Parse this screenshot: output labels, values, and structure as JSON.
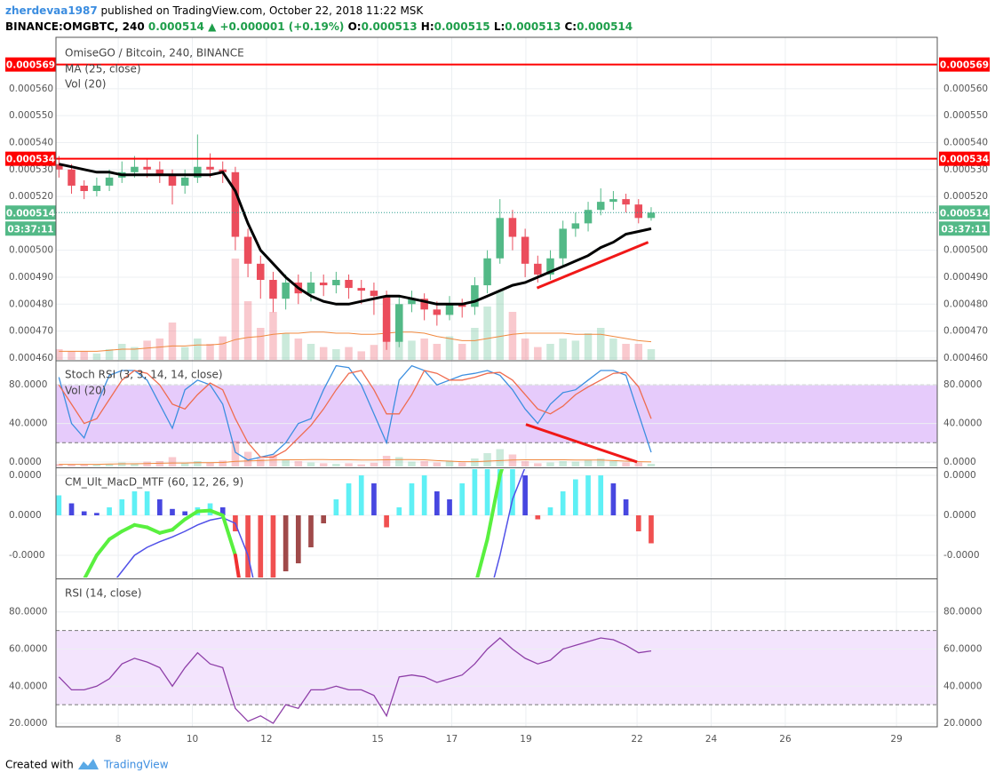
{
  "header": {
    "author": "zherdevaa1987",
    "published": " published on TradingView.com, October 22, 2018 11:22 MSK",
    "symbol": "BINANCE:OMGBTC, 240",
    "last": "0.000514",
    "change": "▲ +0.000001 (+0.19%)",
    "ohlc": [
      {
        "label": "O:",
        "value": "0.000513"
      },
      {
        "label": "H:",
        "value": "0.000515"
      },
      {
        "label": "L:",
        "value": "0.000513"
      },
      {
        "label": "C:",
        "value": "0.000514"
      }
    ]
  },
  "footer": {
    "created": "Created with",
    "brand": "TradingView"
  },
  "chart_data": [
    {
      "type": "candlestick",
      "title": "OmiseGO / Bitcoin, 240, BINANCE",
      "xlim": [
        6.32,
        30.1
      ],
      "xticks": [
        8,
        10,
        12,
        15,
        17,
        19,
        22,
        24,
        26,
        29
      ],
      "grid": true,
      "ylim": [
        0.0004593,
        0.0005791
      ],
      "yticks": [
        {
          "value": 0.00056,
          "label": "0.000560"
        },
        {
          "value": 0.00055,
          "label": "0.000550"
        },
        {
          "value": 0.00054,
          "label": "0.000540"
        },
        {
          "value": 0.00053,
          "label": "0.000530"
        },
        {
          "value": 0.00052,
          "label": "0.000520"
        },
        {
          "value": 0.0005,
          "label": "0.000500"
        },
        {
          "value": 0.00049,
          "label": "0.000490"
        },
        {
          "value": 0.00048,
          "label": "0.000480"
        },
        {
          "value": 0.00047,
          "label": "0.000470"
        },
        {
          "value": 0.00046,
          "label": "0.000460"
        }
      ],
      "up_color": "#53b987",
      "down_color": "#eb4d5c",
      "x": [
        6.4,
        6.74,
        7.08,
        7.42,
        7.76,
        8.1,
        8.44,
        8.78,
        9.12,
        9.46,
        9.8,
        10.14,
        10.48,
        10.82,
        11.16,
        11.5,
        11.84,
        12.18,
        12.52,
        12.86,
        13.2,
        13.54,
        13.88,
        14.22,
        14.56,
        14.9,
        15.24,
        15.58,
        15.92,
        16.26,
        16.6,
        16.94,
        17.28,
        17.62,
        17.96,
        18.3,
        18.64,
        18.98,
        19.32,
        19.66,
        20.0,
        20.34,
        20.68,
        21.02,
        21.36,
        21.7,
        22.04,
        22.38
      ],
      "open": [
        0.000532,
        0.00053,
        0.000524,
        0.000522,
        0.000524,
        0.000527,
        0.000529,
        0.000531,
        0.00053,
        0.000528,
        0.000524,
        0.000527,
        0.000531,
        0.00053,
        0.000529,
        0.000505,
        0.000495,
        0.000489,
        0.000482,
        0.000488,
        0.000484,
        0.000488,
        0.000487,
        0.000489,
        0.000486,
        0.000485,
        0.000483,
        0.000466,
        0.00048,
        0.000482,
        0.000478,
        0.000476,
        0.00048,
        0.000479,
        0.000487,
        0.000497,
        0.000512,
        0.000505,
        0.000495,
        0.000491,
        0.000497,
        0.000508,
        0.00051,
        0.000515,
        0.000518,
        0.000519,
        0.000517,
        0.000512
      ],
      "high": [
        0.000535,
        0.000532,
        0.000526,
        0.000527,
        0.00053,
        0.000533,
        0.000535,
        0.000534,
        0.000533,
        0.00053,
        0.00053,
        0.000543,
        0.000536,
        0.000533,
        0.000531,
        0.000508,
        0.000498,
        0.000492,
        0.000491,
        0.000491,
        0.000492,
        0.000491,
        0.000492,
        0.000491,
        0.000489,
        0.000488,
        0.000485,
        0.000483,
        0.000485,
        0.000484,
        0.000481,
        0.000483,
        0.000482,
        0.00049,
        0.0005,
        0.000519,
        0.000515,
        0.000508,
        0.000498,
        0.0005,
        0.000511,
        0.000514,
        0.000518,
        0.000523,
        0.000522,
        0.000521,
        0.000519,
        0.000516
      ],
      "low": [
        0.000527,
        0.000521,
        0.000519,
        0.00052,
        0.000522,
        0.000525,
        0.000527,
        0.000527,
        0.000525,
        0.000517,
        0.000521,
        0.000525,
        0.000527,
        0.000525,
        0.0005,
        0.00049,
        0.000482,
        0.000477,
        0.000478,
        0.00048,
        0.000481,
        0.000483,
        0.000484,
        0.000482,
        0.00048,
        0.000476,
        0.000463,
        0.000464,
        0.000477,
        0.000474,
        0.000472,
        0.000474,
        0.000475,
        0.000476,
        0.000484,
        0.000495,
        0.0005,
        0.00049,
        0.000488,
        0.000489,
        0.000494,
        0.000505,
        0.000507,
        0.000513,
        0.000515,
        0.000514,
        0.00051,
        0.000511
      ],
      "close": [
        0.00053,
        0.000524,
        0.000522,
        0.000524,
        0.000527,
        0.000529,
        0.000531,
        0.00053,
        0.000528,
        0.000524,
        0.000527,
        0.000531,
        0.00053,
        0.000529,
        0.000505,
        0.000495,
        0.000489,
        0.000482,
        0.000488,
        0.000484,
        0.000488,
        0.000487,
        0.000489,
        0.000486,
        0.000485,
        0.000483,
        0.000466,
        0.00048,
        0.000482,
        0.000478,
        0.000476,
        0.00048,
        0.000479,
        0.000487,
        0.000497,
        0.000512,
        0.000505,
        0.000495,
        0.000491,
        0.000497,
        0.000508,
        0.00051,
        0.000515,
        0.000518,
        0.000519,
        0.000517,
        0.000512,
        0.000514
      ],
      "series": [
        {
          "name": "MA (25, close)",
          "color": "#000000",
          "values": [
            0.000532,
            0.000531,
            0.00053,
            0.000529,
            0.000529,
            0.000528,
            0.000528,
            0.000528,
            0.000528,
            0.000528,
            0.000528,
            0.000528,
            0.000528,
            0.000529,
            0.000522,
            0.00051,
            0.0005,
            0.000495,
            0.00049,
            0.000486,
            0.000483,
            0.000481,
            0.00048,
            0.00048,
            0.000481,
            0.000482,
            0.000483,
            0.000483,
            0.000482,
            0.000481,
            0.00048,
            0.00048,
            0.00048,
            0.000481,
            0.000483,
            0.000485,
            0.000487,
            0.000488,
            0.00049,
            0.000492,
            0.000494,
            0.000496,
            0.000498,
            0.000501,
            0.000503,
            0.000506,
            0.000507,
            0.000508
          ]
        }
      ],
      "volume": {
        "name": "Vol (20)",
        "vlim": [
          0,
          100
        ],
        "ma_color": "#f0883e",
        "values": [
          10,
          8,
          8,
          6,
          10,
          15,
          12,
          18,
          20,
          35,
          12,
          20,
          15,
          22,
          95,
          55,
          30,
          45,
          25,
          20,
          15,
          12,
          10,
          12,
          8,
          14,
          40,
          35,
          18,
          20,
          15,
          22,
          15,
          30,
          50,
          65,
          45,
          20,
          12,
          15,
          20,
          18,
          25,
          30,
          20,
          15,
          15,
          10
        ],
        "ma": [
          8,
          8,
          8,
          8,
          9,
          10,
          10,
          11,
          12,
          13,
          13,
          14,
          14,
          15,
          19,
          21,
          22,
          24,
          25,
          25,
          26,
          26,
          25,
          25,
          24,
          24,
          25,
          26,
          26,
          25,
          22,
          20,
          18,
          18,
          20,
          22,
          24,
          25,
          25,
          25,
          25,
          24,
          24,
          24,
          22,
          20,
          18,
          17
        ]
      },
      "levels": [
        {
          "value": 0.000569,
          "color": "#ff0000"
        },
        {
          "value": 0.000534,
          "color": "#ff0000"
        }
      ],
      "last_price": {
        "value": 0.000514,
        "countdown": "03:37:11",
        "color": "#53b987"
      },
      "trendlines": [
        {
          "x": [
            19.3,
            22.3
          ],
          "y": [
            0.000486,
            0.000503
          ],
          "color": "#f01818"
        }
      ]
    },
    {
      "type": "line",
      "title": "Stoch RSI (3, 3, 14, 14, close)",
      "overlay_label": "Vol (20)",
      "xlim": [
        6.32,
        30.1
      ],
      "ylim": [
        -4.65,
        104.2
      ],
      "yticks": [
        {
          "value": 80,
          "label": "80.0000"
        },
        {
          "value": 40,
          "label": "40.0000"
        },
        {
          "value": 0,
          "label": "0.0000"
        }
      ],
      "band": [
        20,
        80
      ],
      "band_color": "#e6cbfb",
      "x": [
        6.4,
        6.74,
        7.08,
        7.42,
        7.76,
        8.1,
        8.44,
        8.78,
        9.12,
        9.46,
        9.8,
        10.14,
        10.48,
        10.82,
        11.16,
        11.5,
        11.84,
        12.18,
        12.52,
        12.86,
        13.2,
        13.54,
        13.88,
        14.22,
        14.56,
        14.9,
        15.24,
        15.58,
        15.92,
        16.26,
        16.6,
        16.94,
        17.28,
        17.62,
        17.96,
        18.3,
        18.64,
        18.98,
        19.32,
        19.66,
        20.0,
        20.34,
        20.68,
        21.02,
        21.36,
        21.7,
        22.04,
        22.38
      ],
      "series": [
        {
          "color": "#3d8fe0",
          "values": [
            88,
            40,
            25,
            60,
            90,
            95,
            95,
            85,
            60,
            35,
            75,
            85,
            80,
            60,
            10,
            2,
            5,
            8,
            20,
            40,
            45,
            75,
            100,
            98,
            80,
            50,
            20,
            85,
            100,
            95,
            80,
            85,
            90,
            92,
            95,
            90,
            75,
            55,
            40,
            60,
            72,
            75,
            85,
            95,
            95,
            90,
            50,
            10
          ]
        },
        {
          "color": "#ef6c4f",
          "values": [
            80,
            60,
            40,
            45,
            65,
            85,
            95,
            92,
            80,
            60,
            55,
            70,
            82,
            75,
            45,
            20,
            5,
            5,
            12,
            25,
            38,
            55,
            75,
            92,
            95,
            75,
            50,
            50,
            70,
            95,
            92,
            85,
            85,
            88,
            92,
            93,
            85,
            70,
            55,
            50,
            58,
            70,
            78,
            85,
            92,
            93,
            78,
            45
          ]
        }
      ],
      "trendlines": [
        {
          "x": [
            19.0,
            22.0
          ],
          "y": [
            39,
            0
          ],
          "color": "#f01818"
        }
      ]
    },
    {
      "type": "macd",
      "title": "CM_Ult_MacD_MTF (60, 12, 26, 9)",
      "xlim": [
        6.32,
        30.1
      ],
      "ylim": [
        -7.78e-06,
        5.78e-06
      ],
      "yticks": [
        {
          "value": 5e-06,
          "label": "0.0000"
        },
        {
          "value": 0,
          "label": "0.0000"
        },
        {
          "value": -5e-06,
          "label": "-0.0000"
        }
      ],
      "histogram_colors": [
        "#5ff0f5",
        "#4747e0",
        "#f05050",
        "#a04a4a"
      ],
      "macd_colors": [
        "#59f03f",
        "#f03030"
      ],
      "signal_color": "#5050e8",
      "x": [
        6.4,
        6.74,
        7.08,
        7.42,
        7.76,
        8.1,
        8.44,
        8.78,
        9.12,
        9.46,
        9.8,
        10.14,
        10.48,
        10.82,
        11.16,
        11.5,
        11.84,
        12.18,
        12.52,
        12.86,
        13.2,
        13.54,
        13.88,
        14.22,
        14.56,
        14.9,
        15.24,
        15.58,
        15.92,
        16.26,
        16.6,
        16.94,
        17.28,
        17.62,
        17.96,
        18.3,
        18.64,
        18.98,
        19.32,
        19.66,
        20.0,
        20.34,
        20.68,
        21.02,
        21.36,
        21.7,
        22.04,
        22.38
      ],
      "histogram": [
        2.5e-06,
        1.5e-06,
        5e-07,
        3e-07,
        1e-06,
        2e-06,
        3e-06,
        3e-06,
        2e-06,
        8e-07,
        5e-07,
        1e-06,
        1.5e-06,
        1e-06,
        -2e-06,
        -8e-06,
        -8e-06,
        -8e-06,
        -7e-06,
        -6e-06,
        -4e-06,
        -1e-06,
        2e-06,
        4e-06,
        5e-06,
        4e-06,
        -1.5e-06,
        1e-06,
        4e-06,
        5e-06,
        3e-06,
        2e-06,
        4e-06,
        6e-06,
        8e-06,
        8e-06,
        8e-06,
        5e-06,
        -5e-07,
        1e-06,
        3e-06,
        4.5e-06,
        5e-06,
        5e-06,
        4e-06,
        2e-06,
        -2e-06,
        -3.5e-06
      ],
      "macd": [
        -1.5e-05,
        -1.2e-05,
        -8e-06,
        -5e-06,
        -3e-06,
        -2e-06,
        -1.2e-06,
        -1.5e-06,
        -2.2e-06,
        -1.8e-06,
        -5e-07,
        5e-07,
        6e-07,
        0,
        -5e-06,
        -1.5e-05,
        -2.5e-05,
        -3e-05,
        -3e-05,
        -2.8e-05,
        -2.5e-05,
        -2.2e-05,
        -2e-05,
        -1.8e-05,
        -1.6e-05,
        -1.5e-05,
        -1.7e-05,
        -1.6e-05,
        -1.4e-05,
        -1.3e-05,
        -1.4e-05,
        -1.3e-05,
        -1.2e-05,
        -9e-06,
        -3e-06,
        5e-06,
        1e-05,
        1.2e-05,
        1.2e-05,
        1.2e-05,
        1.3e-05,
        1.4e-05,
        1.5e-05,
        1.6e-05,
        1.6e-05,
        1.5e-05,
        1.3e-05,
        1.1e-05
      ],
      "signal": [
        -2e-05,
        -1.8e-05,
        -1.5e-05,
        -1.2e-05,
        -9e-06,
        -7e-06,
        -5e-06,
        -4e-06,
        -3.3e-06,
        -2.7e-06,
        -2e-06,
        -1.2e-06,
        -6e-07,
        -3e-07,
        -1e-06,
        -5e-06,
        -1.2e-05,
        -1.8e-05,
        -2.2e-05,
        -2.4e-05,
        -2.5e-05,
        -2.5e-05,
        -2.4e-05,
        -2.3e-05,
        -2.2e-05,
        -2.1e-05,
        -2e-05,
        -1.9e-05,
        -1.8e-05,
        -1.7e-05,
        -1.65e-05,
        -1.6e-05,
        -1.55e-05,
        -1.45e-05,
        -1.1e-05,
        -5e-06,
        2e-06,
        6e-06,
        9e-06,
        1.1e-05,
        1.2e-05,
        1.3e-05,
        1.4e-05,
        1.5e-05,
        1.55e-05,
        1.55e-05,
        1.5e-05,
        1.4e-05
      ]
    },
    {
      "type": "line",
      "title": "RSI (14, close)",
      "xlim": [
        6.32,
        30.1
      ],
      "ylim": [
        18.1,
        97.1
      ],
      "yticks": [
        {
          "value": 80,
          "label": "80.0000"
        },
        {
          "value": 60,
          "label": "60.0000"
        },
        {
          "value": 40,
          "label": "40.0000"
        },
        {
          "value": 20,
          "label": "20.0000"
        }
      ],
      "band": [
        30,
        70
      ],
      "band_color": "#f3e4fd",
      "x": [
        6.4,
        6.74,
        7.08,
        7.42,
        7.76,
        8.1,
        8.44,
        8.78,
        9.12,
        9.46,
        9.8,
        10.14,
        10.48,
        10.82,
        11.16,
        11.5,
        11.84,
        12.18,
        12.52,
        12.86,
        13.2,
        13.54,
        13.88,
        14.22,
        14.56,
        14.9,
        15.24,
        15.58,
        15.92,
        16.26,
        16.6,
        16.94,
        17.28,
        17.62,
        17.96,
        18.3,
        18.64,
        18.98,
        19.32,
        19.66,
        20.0,
        20.34,
        20.68,
        21.02,
        21.36,
        21.7,
        22.04,
        22.38
      ],
      "series": [
        {
          "color": "#8e3fa8",
          "values": [
            45,
            38,
            38,
            40,
            44,
            52,
            55,
            53,
            50,
            40,
            50,
            58,
            52,
            50,
            28,
            21,
            24,
            20,
            30,
            28,
            38,
            38,
            40,
            38,
            38,
            35,
            24,
            45,
            46,
            45,
            42,
            44,
            46,
            52,
            60,
            66,
            60,
            55,
            52,
            54,
            60,
            62,
            64,
            66,
            65,
            62,
            58,
            59
          ]
        }
      ]
    }
  ]
}
